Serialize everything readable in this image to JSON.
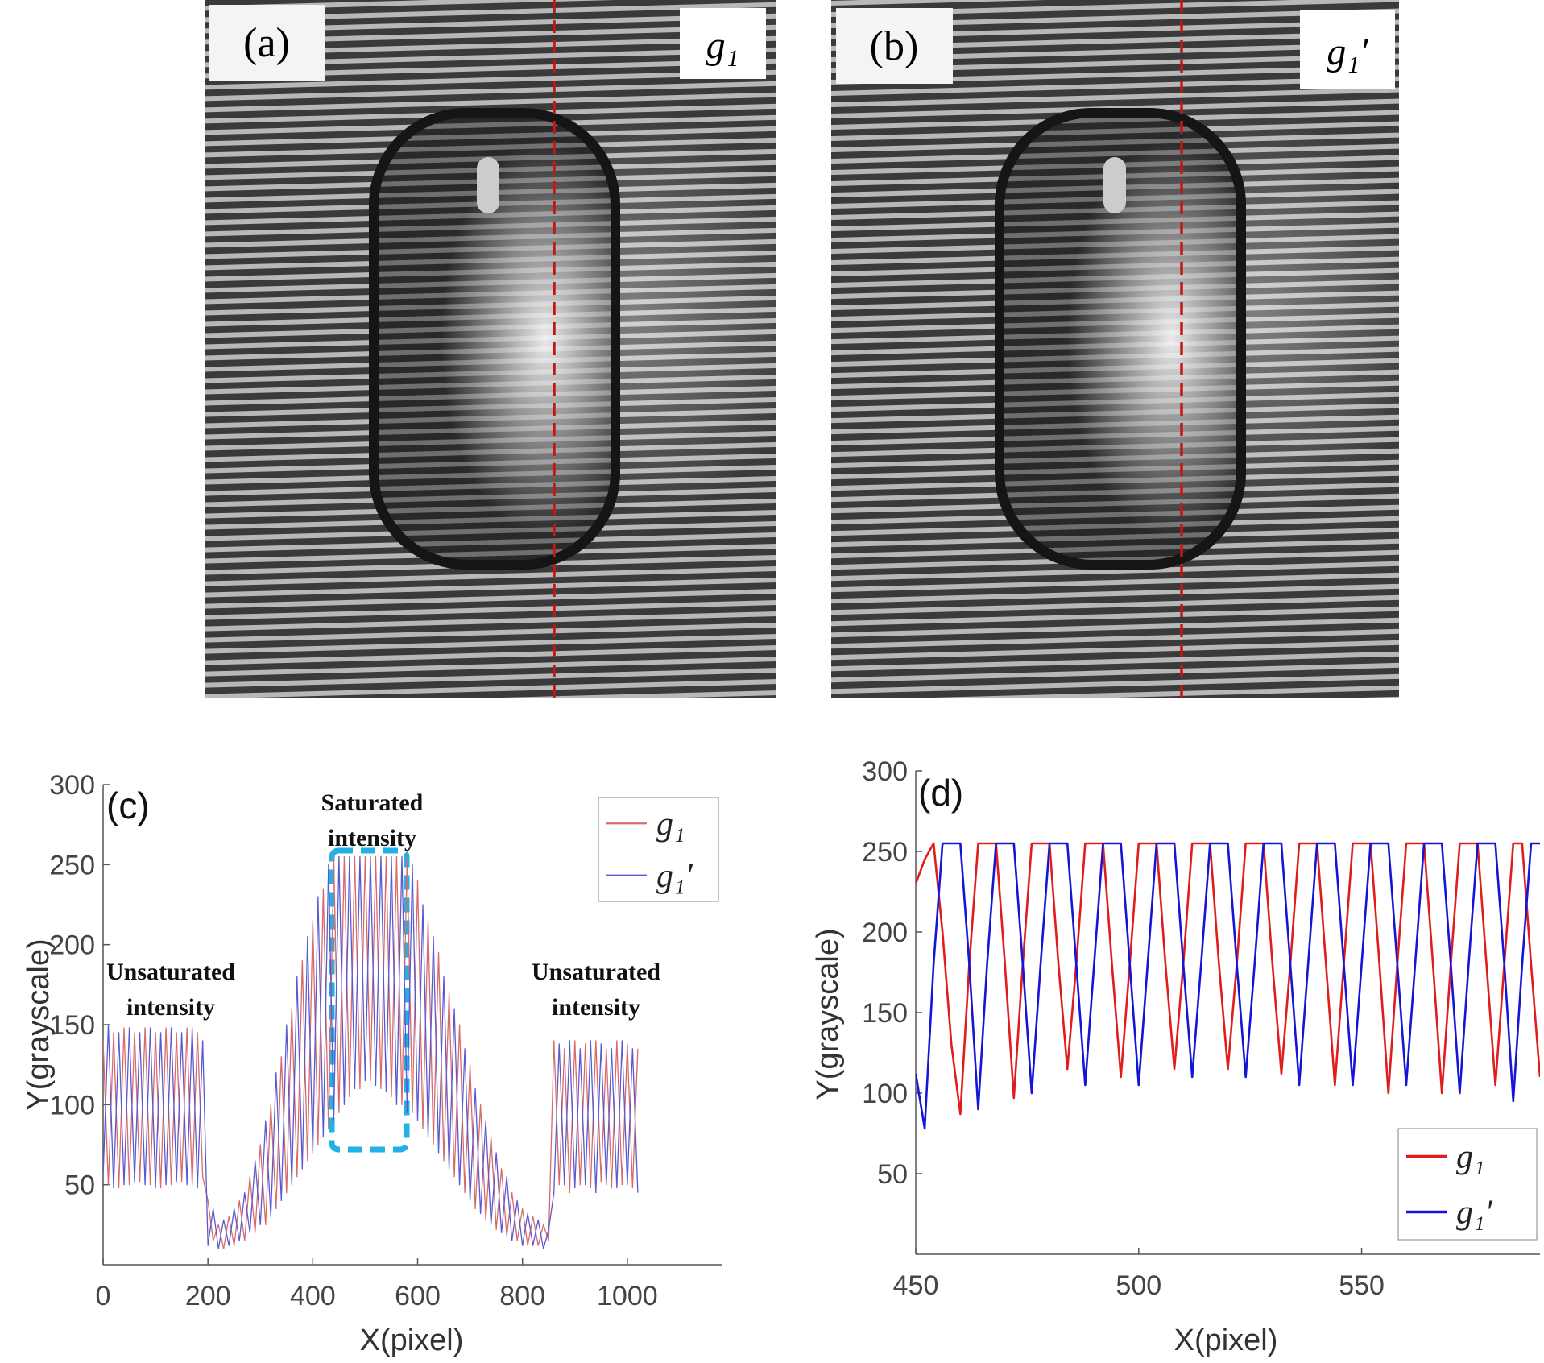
{
  "images": [
    {
      "label": "(a)",
      "tag": "g₁"
    },
    {
      "label": "(b)",
      "tag": "g₁′"
    }
  ],
  "chart_data": [
    {
      "type": "line",
      "title": "(c)",
      "xlabel": "X(pixel)",
      "ylabel": "Y(grayscale)",
      "xlim": [
        0,
        1180
      ],
      "xticks": [
        0,
        200,
        400,
        600,
        800,
        1000
      ],
      "ylim": [
        0,
        300
      ],
      "yticks": [
        50,
        100,
        150,
        200,
        250,
        300
      ],
      "legend": "upper right",
      "annotations": [
        {
          "text": "Unsaturated intensity"
        },
        {
          "text": "Saturated intensity"
        },
        {
          "text": "Unsaturated intensity"
        }
      ],
      "x": [
        0,
        10,
        20,
        30,
        40,
        50,
        60,
        70,
        80,
        90,
        100,
        110,
        120,
        130,
        140,
        150,
        160,
        170,
        180,
        190,
        200,
        210,
        220,
        230,
        240,
        250,
        260,
        270,
        280,
        290,
        300,
        310,
        320,
        330,
        340,
        350,
        360,
        370,
        380,
        390,
        400,
        410,
        420,
        430,
        440,
        450,
        460,
        470,
        480,
        490,
        500,
        510,
        520,
        530,
        540,
        550,
        560,
        570,
        580,
        590,
        600,
        610,
        620,
        630,
        640,
        650,
        660,
        670,
        680,
        690,
        700,
        710,
        720,
        730,
        740,
        750,
        760,
        770,
        780,
        790,
        800,
        810,
        820,
        830,
        840,
        850,
        860,
        870,
        880,
        890,
        900,
        910,
        920,
        930,
        940,
        950,
        960,
        970,
        980,
        990,
        1000,
        1010,
        1020
      ],
      "series": [
        {
          "name": "g₁",
          "color": "#d96a6a",
          "values": [
            140,
            50,
            145,
            48,
            148,
            50,
            145,
            52,
            148,
            50,
            145,
            48,
            148,
            50,
            145,
            52,
            148,
            50,
            145,
            55,
            40,
            15,
            25,
            10,
            30,
            12,
            40,
            15,
            55,
            20,
            75,
            25,
            100,
            35,
            130,
            45,
            160,
            55,
            190,
            65,
            215,
            75,
            235,
            85,
            255,
            95,
            255,
            105,
            255,
            110,
            255,
            115,
            255,
            110,
            255,
            105,
            255,
            100,
            255,
            95,
            240,
            85,
            215,
            75,
            195,
            65,
            170,
            55,
            150,
            45,
            125,
            35,
            100,
            28,
            80,
            22,
            60,
            18,
            45,
            15,
            35,
            12,
            30,
            12,
            25,
            15,
            140,
            50,
            135,
            45,
            140,
            50,
            138,
            48,
            140,
            52,
            135,
            48,
            140,
            50,
            138,
            48,
            135
          ]
        },
        {
          "name": "g₁′",
          "color": "#5a5ad0",
          "values": [
            55,
            150,
            48,
            145,
            50,
            148,
            52,
            145,
            50,
            148,
            48,
            145,
            50,
            148,
            52,
            145,
            50,
            148,
            48,
            140,
            12,
            35,
            10,
            28,
            12,
            35,
            15,
            45,
            20,
            65,
            25,
            90,
            30,
            120,
            40,
            150,
            50,
            180,
            60,
            205,
            70,
            230,
            80,
            250,
            90,
            255,
            100,
            255,
            110,
            255,
            115,
            255,
            112,
            255,
            108,
            255,
            100,
            255,
            95,
            250,
            90,
            225,
            80,
            205,
            70,
            180,
            60,
            160,
            50,
            135,
            40,
            110,
            32,
            90,
            25,
            70,
            20,
            55,
            15,
            40,
            12,
            32,
            12,
            28,
            10,
            22,
            45,
            138,
            50,
            140,
            48,
            135,
            50,
            140,
            45,
            138,
            50,
            135,
            48,
            140,
            50,
            135,
            45
          ]
        }
      ]
    },
    {
      "type": "line",
      "title": "(d)",
      "xlabel": "X(pixel)",
      "ylabel": "Y(grayscale)",
      "xlim": [
        450,
        590
      ],
      "xticks": [
        450,
        500,
        550
      ],
      "ylim": [
        0,
        300
      ],
      "yticks": [
        50,
        100,
        150,
        200,
        250,
        300
      ],
      "legend": "lower right",
      "x": [
        450,
        452,
        454,
        456,
        458,
        460,
        462,
        464,
        466,
        468,
        470,
        472,
        474,
        476,
        478,
        480,
        482,
        484,
        486,
        488,
        490,
        492,
        494,
        496,
        498,
        500,
        502,
        504,
        506,
        508,
        510,
        512,
        514,
        516,
        518,
        520,
        522,
        524,
        526,
        528,
        530,
        532,
        534,
        536,
        538,
        540,
        542,
        544,
        546,
        548,
        550,
        552,
        554,
        556,
        558,
        560,
        562,
        564,
        566,
        568,
        570,
        572,
        574,
        576,
        578,
        580,
        582,
        584,
        586,
        588,
        590
      ],
      "series": [
        {
          "name": "g₁",
          "color": "#e01c1c",
          "values": [
            230,
            245,
            255,
            200,
            130,
            87,
            180,
            255,
            255,
            255,
            180,
            97,
            180,
            255,
            255,
            255,
            180,
            115,
            180,
            255,
            255,
            255,
            180,
            110,
            180,
            255,
            255,
            255,
            180,
            115,
            180,
            255,
            255,
            255,
            180,
            115,
            180,
            255,
            255,
            255,
            180,
            112,
            180,
            255,
            255,
            255,
            180,
            105,
            180,
            255,
            255,
            255,
            180,
            100,
            180,
            255,
            255,
            255,
            180,
            100,
            180,
            255,
            255,
            255,
            180,
            105,
            180,
            255,
            255,
            180,
            110
          ]
        },
        {
          "name": "g₁′",
          "color": "#1515d8",
          "values": [
            112,
            78,
            180,
            255,
            255,
            255,
            180,
            90,
            180,
            255,
            255,
            255,
            180,
            100,
            180,
            255,
            255,
            255,
            180,
            105,
            180,
            255,
            255,
            255,
            180,
            105,
            180,
            255,
            255,
            255,
            180,
            110,
            180,
            255,
            255,
            255,
            180,
            110,
            180,
            255,
            255,
            255,
            180,
            105,
            180,
            255,
            255,
            255,
            180,
            105,
            180,
            255,
            255,
            255,
            180,
            105,
            180,
            255,
            255,
            255,
            180,
            100,
            180,
            255,
            255,
            255,
            180,
            95,
            180,
            255,
            255
          ]
        }
      ]
    }
  ]
}
